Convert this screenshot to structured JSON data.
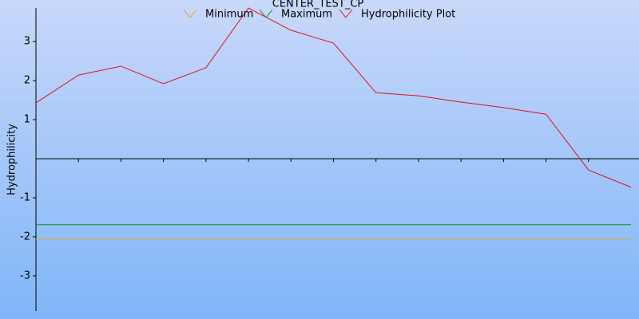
{
  "chart_data": {
    "type": "line",
    "title": "CENTER_TEST_CP",
    "y_label": "Hydrophilicity",
    "categories": [
      null,
      null,
      null,
      null,
      null,
      null,
      null,
      null,
      null,
      null,
      null,
      null,
      null,
      null,
      null
    ],
    "series": [
      {
        "name": "Minimum",
        "color": "#f0a030",
        "values": [
          -2.06,
          -2.06,
          -2.06,
          -2.06,
          -2.06,
          -2.06,
          -2.06,
          -2.06,
          -2.06,
          -2.06,
          -2.06,
          -2.06,
          -2.06,
          -2.06,
          -2.06
        ]
      },
      {
        "name": "Maximum",
        "color": "#109030",
        "values": [
          -1.69,
          -1.69,
          -1.69,
          -1.69,
          -1.69,
          -1.69,
          -1.69,
          -1.69,
          -1.69,
          -1.69,
          -1.69,
          -1.69,
          -1.69,
          -1.69,
          -1.69
        ]
      },
      {
        "name": "Hydrophilicity Plot",
        "color": "#e01020",
        "values": [
          1.43,
          2.14,
          2.37,
          1.92,
          2.33,
          3.86,
          3.29,
          2.96,
          1.69,
          1.61,
          1.45,
          1.31,
          1.14,
          -0.29,
          -0.73
        ]
      }
    ],
    "ylim": [
      -3.9,
      3.86
    ],
    "yticks": [
      -3,
      -2,
      -1,
      1,
      2,
      3
    ]
  }
}
